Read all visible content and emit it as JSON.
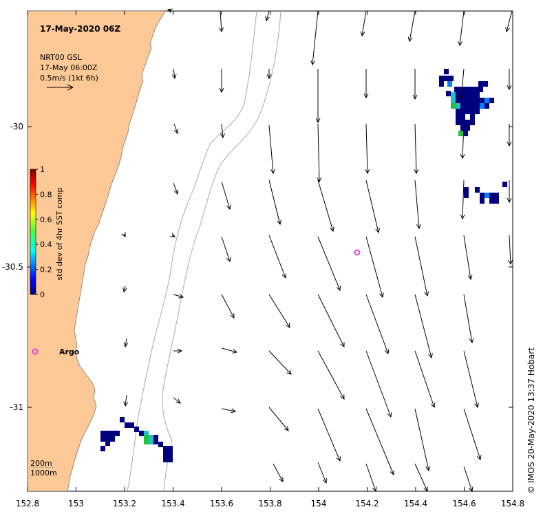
{
  "title": "17-May-2020 06Z",
  "info_lines": [
    "NRT00 GSL",
    "17-May 06:00Z",
    "0.5m/s (1kt 6h)"
  ],
  "colorbar": {
    "label": "std dev of 4hr SST comp",
    "ticks": [
      "0",
      "0.2",
      "0.4",
      "0.6",
      "0.8",
      "1"
    ]
  },
  "x_ticks": [
    "152.8",
    "153",
    "153.2",
    "153.4",
    "153.6",
    "153.8",
    "154",
    "154.2",
    "154.4",
    "154.6",
    "154.8"
  ],
  "y_ticks": [
    "-30",
    "-30.5",
    "-31"
  ],
  "depth_legend": [
    "200m",
    "1000m"
  ],
  "argo": {
    "label": "Argo",
    "color": "#e040e0"
  },
  "footer": "© IMOS 20-May-2020 13:37 Hobart",
  "colors": {
    "land": "#fbc896",
    "contour": "#a8a8a8",
    "arrow": "#000000",
    "sst_low": "#00007f",
    "sst_mid": "#0080ff",
    "sst_cyan": "#20c0c0",
    "sst_green": "#20c040"
  }
}
